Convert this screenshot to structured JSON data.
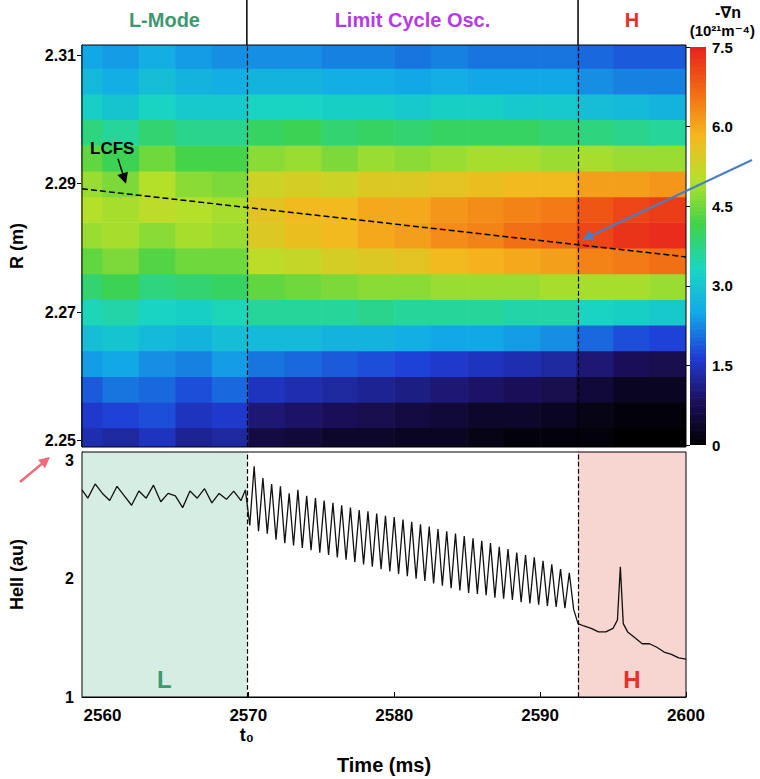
{
  "chart_data": [
    {
      "type": "heatmap",
      "ylabel": "R (m)",
      "xlim": [
        2558.6,
        2600
      ],
      "ylim": [
        2.249,
        2.3116
      ],
      "yticks": [
        2.25,
        2.27,
        2.29,
        2.31
      ],
      "tick_labels": "y",
      "phases": [
        {
          "label": "L-Mode",
          "start": 2558.6,
          "end": 2569.9,
          "color": "#3d9970"
        },
        {
          "label": "Limit Cycle Osc.",
          "start": 2569.9,
          "end": 2592.6,
          "color": "#b43ce6"
        },
        {
          "label": "H",
          "start": 2592.6,
          "end": 2600,
          "color": "#e8302a"
        }
      ],
      "lcfs": {
        "label": "LCFS",
        "x": [
          2558.6,
          2600
        ],
        "y": [
          2.2892,
          2.2786
        ],
        "line_style": "dashed"
      },
      "x_edges": [
        2557.5,
        2560,
        2562.5,
        2565,
        2567.5,
        2570,
        2572.5,
        2575,
        2577.5,
        2580,
        2582.5,
        2585,
        2587.5,
        2590,
        2592.5,
        2595,
        2597.5,
        2600
      ],
      "y_edges": [
        2.248,
        2.252,
        2.256,
        2.26,
        2.264,
        2.268,
        2.272,
        2.276,
        2.28,
        2.284,
        2.288,
        2.292,
        2.296,
        2.3,
        2.304,
        2.308,
        2.312
      ],
      "cells": [
        [
          1.4,
          1.6,
          1.9,
          2.4,
          2.9,
          3.4,
          3.9,
          4.4,
          4.8,
          5.0,
          4.8,
          4.4,
          3.8,
          3.2,
          2.8,
          2.5
        ],
        [
          1.3,
          1.7,
          2.1,
          2.5,
          3.0,
          3.5,
          4.1,
          4.6,
          4.9,
          4.9,
          4.6,
          4.1,
          3.6,
          3.0,
          2.6,
          2.4
        ],
        [
          1.5,
          1.8,
          2.0,
          2.3,
          2.8,
          3.3,
          3.8,
          4.3,
          4.7,
          5.1,
          5.0,
          4.5,
          3.9,
          3.3,
          2.9,
          2.6
        ],
        [
          1.2,
          1.5,
          1.8,
          2.2,
          2.7,
          3.2,
          3.9,
          4.5,
          4.9,
          5.0,
          4.7,
          4.2,
          3.7,
          3.1,
          2.7,
          2.4
        ],
        [
          1.3,
          1.6,
          2.0,
          2.4,
          2.9,
          3.4,
          4.0,
          4.5,
          4.8,
          4.9,
          4.6,
          4.2,
          3.7,
          3.1,
          2.6,
          2.3
        ],
        [
          0.6,
          1.0,
          1.5,
          2.1,
          2.8,
          3.6,
          4.4,
          5.1,
          5.5,
          5.6,
          5.3,
          4.7,
          4.0,
          3.3,
          2.7,
          2.3
        ],
        [
          0.5,
          0.9,
          1.4,
          2.0,
          2.8,
          3.6,
          4.5,
          5.2,
          5.7,
          5.8,
          5.4,
          4.8,
          4.1,
          3.3,
          2.7,
          2.3
        ],
        [
          0.4,
          0.8,
          1.3,
          1.9,
          2.7,
          3.6,
          4.6,
          5.4,
          5.8,
          5.8,
          5.3,
          4.6,
          3.9,
          3.2,
          2.6,
          2.2
        ],
        [
          0.4,
          0.7,
          1.2,
          1.8,
          2.7,
          3.7,
          4.7,
          5.5,
          6.0,
          6.0,
          5.5,
          4.8,
          4.0,
          3.2,
          2.6,
          2.2
        ],
        [
          0.3,
          0.6,
          1.1,
          1.7,
          2.6,
          3.6,
          4.7,
          5.6,
          6.1,
          6.0,
          5.5,
          4.7,
          3.9,
          3.1,
          2.5,
          2.1
        ],
        [
          0.3,
          0.5,
          1.0,
          1.6,
          2.5,
          3.6,
          4.8,
          5.8,
          6.3,
          6.2,
          5.6,
          4.8,
          4.0,
          3.2,
          2.6,
          2.2
        ],
        [
          0.2,
          0.4,
          0.9,
          1.5,
          2.5,
          3.6,
          4.8,
          5.9,
          6.4,
          6.3,
          5.7,
          4.9,
          4.0,
          3.2,
          2.5,
          2.1
        ],
        [
          0.1,
          0.4,
          0.8,
          1.4,
          2.4,
          3.5,
          4.8,
          6.0,
          6.6,
          6.4,
          5.8,
          4.9,
          4.0,
          3.1,
          2.5,
          2.1
        ],
        [
          0.1,
          0.3,
          0.7,
          1.3,
          2.3,
          3.5,
          4.9,
          6.1,
          6.7,
          6.5,
          5.8,
          4.8,
          3.9,
          3.1,
          2.5,
          2.1
        ],
        [
          0.1,
          0.2,
          0.5,
          1.0,
          2.0,
          3.3,
          4.9,
          6.4,
          7.1,
          6.9,
          6.1,
          4.9,
          3.8,
          2.9,
          2.3,
          2.0
        ],
        [
          0.0,
          0.1,
          0.3,
          0.8,
          1.8,
          3.2,
          4.9,
          6.5,
          7.3,
          7.1,
          6.1,
          4.8,
          3.7,
          2.8,
          2.2,
          1.9
        ],
        [
          0.0,
          0.1,
          0.3,
          0.7,
          1.7,
          3.1,
          4.8,
          6.6,
          7.4,
          7.2,
          6.2,
          4.8,
          3.6,
          2.7,
          2.2,
          1.9
        ]
      ],
      "colorbar": {
        "title": "-∇n",
        "unit": "(10²¹m⁻⁴)",
        "range": [
          0,
          7.5
        ],
        "ticks": [
          0,
          1.5,
          {
            "value": 3,
            "label": "3.0"
          },
          4.5,
          {
            "value": 6,
            "label": "6.0"
          },
          7.5
        ]
      }
    },
    {
      "type": "line",
      "xlabel": "Time (ms)",
      "ylabel": "HeII (au)",
      "xlim": [
        2558.6,
        2600
      ],
      "xticks": [
        2560,
        2570,
        2580,
        2590,
        2600
      ],
      "ylim": [
        1,
        3.07
      ],
      "yticks": [
        1,
        2,
        3
      ],
      "color": "#111111",
      "x": [
        2558.6,
        2559,
        2559.5,
        2560,
        2560.5,
        2561,
        2561.5,
        2562,
        2562.5,
        2563,
        2563.5,
        2564,
        2564.5,
        2565,
        2565.5,
        2566,
        2566.5,
        2567,
        2567.5,
        2568,
        2568.5,
        2569,
        2569.5,
        2569.8,
        2570.1,
        2570.4,
        2570.7,
        2571.0,
        2571.3,
        2571.6,
        2571.9,
        2572.2,
        2572.5,
        2572.8,
        2573.1,
        2573.4,
        2573.7,
        2574.0,
        2574.3,
        2574.6,
        2574.9,
        2575.2,
        2575.5,
        2575.8,
        2576.1,
        2576.4,
        2576.7,
        2577.0,
        2577.3,
        2577.6,
        2577.9,
        2578.2,
        2578.5,
        2578.8,
        2579.1,
        2579.4,
        2579.7,
        2580.0,
        2580.3,
        2580.6,
        2580.9,
        2581.2,
        2581.5,
        2581.8,
        2582.1,
        2582.4,
        2582.7,
        2583.0,
        2583.3,
        2583.6,
        2583.9,
        2584.2,
        2584.5,
        2584.8,
        2585.1,
        2585.4,
        2585.7,
        2586.0,
        2586.3,
        2586.6,
        2586.9,
        2587.2,
        2587.5,
        2587.8,
        2588.1,
        2588.4,
        2588.7,
        2589.0,
        2589.3,
        2589.6,
        2589.9,
        2590.2,
        2590.5,
        2590.8,
        2591.1,
        2591.4,
        2591.7,
        2592.0,
        2592.3,
        2592.6,
        2593,
        2593.5,
        2594,
        2594.5,
        2595,
        2595.3,
        2595.5,
        2595.7,
        2596,
        2596.5,
        2597,
        2597.5,
        2598,
        2598.5,
        2599,
        2599.5,
        2600
      ],
      "values": [
        2.75,
        2.68,
        2.8,
        2.72,
        2.66,
        2.78,
        2.7,
        2.62,
        2.74,
        2.68,
        2.79,
        2.65,
        2.72,
        2.7,
        2.6,
        2.74,
        2.68,
        2.76,
        2.64,
        2.72,
        2.67,
        2.74,
        2.66,
        2.75,
        2.45,
        2.95,
        2.4,
        2.85,
        2.38,
        2.8,
        2.33,
        2.78,
        2.3,
        2.72,
        2.28,
        2.75,
        2.26,
        2.7,
        2.24,
        2.68,
        2.22,
        2.66,
        2.2,
        2.64,
        2.18,
        2.62,
        2.16,
        2.6,
        2.14,
        2.58,
        2.12,
        2.57,
        2.1,
        2.55,
        2.08,
        2.53,
        2.06,
        2.52,
        2.04,
        2.5,
        2.02,
        2.48,
        2.0,
        2.46,
        1.98,
        2.44,
        1.96,
        2.42,
        1.94,
        2.4,
        1.92,
        2.38,
        1.9,
        2.36,
        1.88,
        2.34,
        1.87,
        2.32,
        1.86,
        2.3,
        1.84,
        2.27,
        1.83,
        2.25,
        1.82,
        2.22,
        1.8,
        2.2,
        1.79,
        2.18,
        1.78,
        2.15,
        1.77,
        2.12,
        1.76,
        2.08,
        1.75,
        2.05,
        1.74,
        1.62,
        1.6,
        1.58,
        1.55,
        1.55,
        1.58,
        1.65,
        2.1,
        1.62,
        1.55,
        1.5,
        1.45,
        1.45,
        1.42,
        1.38,
        1.36,
        1.33,
        1.32
      ],
      "regions": [
        {
          "label": "L",
          "start": 2558.6,
          "end": 2569.9,
          "color": "#d6ede4"
        },
        {
          "label": "H",
          "start": 2592.6,
          "end": 2600,
          "color": "#f7d5d0"
        }
      ],
      "transitions": [
        {
          "time": 2569.9,
          "label": "t₀"
        },
        {
          "time": 2592.6
        }
      ]
    }
  ]
}
